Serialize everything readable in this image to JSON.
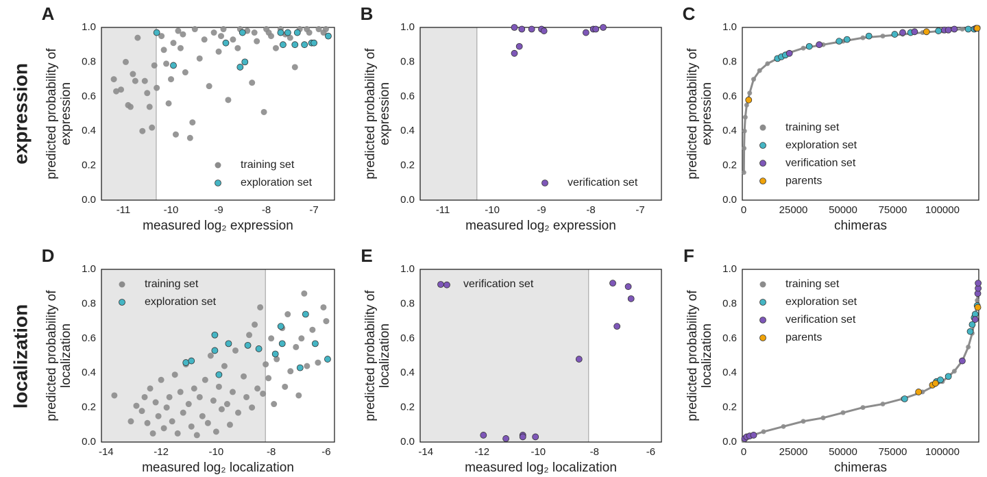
{
  "row_labels": [
    "expression",
    "localization"
  ],
  "chart_data": [
    {
      "type": "scatter",
      "panel_label": "A",
      "xlabel": "measured log₂ expression",
      "ylabel": [
        "predicted probability of",
        "expression"
      ],
      "xlim": [
        -11.46,
        -6.57
      ],
      "ylim": [
        0,
        1
      ],
      "xticks": [
        -11,
        -10,
        -9,
        -8,
        -7
      ],
      "yticks": [
        {
          "value": 0,
          "label": "0.0"
        },
        0.2,
        0.4,
        0.6,
        0.8,
        {
          "value": 1,
          "label": "1.0"
        }
      ],
      "threshold": -10.31,
      "legend": "lower right",
      "series": [
        {
          "name": "training set",
          "color": "#8c8c8c",
          "x": [
            -11.2,
            -11.15,
            -11.05,
            -10.95,
            -10.9,
            -10.85,
            -10.8,
            -10.75,
            -10.7,
            -10.6,
            -10.55,
            -10.5,
            -10.45,
            -10.4,
            -10.35,
            -10.3,
            -10.2,
            -10.15,
            -10.1,
            -10.05,
            -10.0,
            -9.9,
            -9.85,
            -9.8,
            -9.7,
            -9.6,
            -9.55,
            -9.5,
            -9.4,
            -9.3,
            -9.2,
            -9.1,
            -9.0,
            -8.9,
            -8.8,
            -8.7,
            -8.6,
            -8.4,
            -8.3,
            -8.2,
            -8.05,
            -8.0,
            -7.9,
            -7.8,
            -7.7,
            -7.5,
            -7.4,
            -7.3,
            -7.1,
            -6.9,
            -6.8,
            -6.75,
            -9.95,
            -9.75,
            -8.95,
            -8.55,
            -8.25,
            -7.95,
            -7.6,
            -7.15
          ],
          "values": [
            0.7,
            0.63,
            0.64,
            0.8,
            0.55,
            0.54,
            0.73,
            0.69,
            0.94,
            0.4,
            0.69,
            0.62,
            0.54,
            0.42,
            0.78,
            0.65,
            0.95,
            0.87,
            0.79,
            0.56,
            0.7,
            0.38,
            0.98,
            0.88,
            0.74,
            0.36,
            0.45,
            0.99,
            0.82,
            0.93,
            0.66,
            0.97,
            0.86,
            0.99,
            0.58,
            0.93,
            0.88,
            0.98,
            0.68,
            0.92,
            0.51,
            0.99,
            0.95,
            0.88,
            0.99,
            0.94,
            0.77,
            0.99,
            0.97,
            0.99,
            0.97,
            0.99,
            0.91,
            0.96,
            0.95,
            0.99,
            0.97,
            0.97,
            0.96,
            0.99
          ]
        },
        {
          "name": "exploration set",
          "color": "#45b5c4",
          "x": [
            -10.3,
            -9.95,
            -8.85,
            -8.5,
            -8.55,
            -8.45,
            -7.7,
            -7.55,
            -7.35,
            -7.65,
            -7.4,
            -7.2,
            -7.05,
            -7.0,
            -6.7
          ],
          "values": [
            0.97,
            0.78,
            0.91,
            0.97,
            0.77,
            0.8,
            0.97,
            0.97,
            0.97,
            0.9,
            0.9,
            0.9,
            0.91,
            0.91,
            0.95
          ]
        }
      ]
    },
    {
      "type": "scatter",
      "panel_label": "B",
      "xlabel": "measured log₂ expression",
      "ylabel": [
        "predicted probability of",
        "expression"
      ],
      "xlim": [
        -11.46,
        -6.57
      ],
      "ylim": [
        0,
        1
      ],
      "xticks": [
        -11,
        -10,
        -9,
        -8,
        -7
      ],
      "yticks": [
        {
          "value": 0,
          "label": "0.0"
        },
        0.2,
        0.4,
        0.6,
        0.8,
        {
          "value": 1,
          "label": "1.0"
        }
      ],
      "threshold": -10.31,
      "legend": "lower right",
      "series": [
        {
          "name": "verification set",
          "color": "#7e57b8",
          "x": [
            -9.55,
            -9.45,
            -9.55,
            -9.4,
            -9.2,
            -9.0,
            -8.95,
            -8.1,
            -7.95,
            -7.9,
            -7.75
          ],
          "values": [
            0.85,
            0.89,
            1.0,
            0.99,
            0.99,
            0.99,
            0.98,
            0.97,
            0.99,
            0.99,
            1.0
          ]
        }
      ]
    },
    {
      "type": "scatter",
      "panel_label": "C",
      "xlabel": "chimeras",
      "ylabel": [
        "predicted probability of",
        "expression"
      ],
      "xlim": [
        -700,
        118300
      ],
      "ylim": [
        0,
        1
      ],
      "xticks": [
        0,
        25000,
        50000,
        75000,
        100000
      ],
      "yticks": [
        {
          "value": 0,
          "label": "0.0"
        },
        0.2,
        0.4,
        0.6,
        0.8,
        {
          "value": 1,
          "label": "1.0"
        }
      ],
      "legend": "center left",
      "series": [
        {
          "name": "training set",
          "color": "#8c8c8c",
          "line": true,
          "x": [
            100,
            200,
            400,
            800,
            1500,
            3000,
            5000,
            8000,
            12000,
            17000,
            22000,
            30000,
            40000,
            50000,
            60000,
            70000,
            80000,
            90000,
            100000,
            110000,
            118000
          ],
          "values": [
            0.16,
            0.3,
            0.4,
            0.48,
            0.55,
            0.62,
            0.7,
            0.75,
            0.79,
            0.82,
            0.85,
            0.88,
            0.9,
            0.92,
            0.94,
            0.95,
            0.96,
            0.97,
            0.98,
            0.99,
            1.0
          ]
        },
        {
          "name": "exploration set",
          "color": "#45b5c4",
          "x": [
            17000,
            19000,
            21000,
            33000,
            48000,
            52000,
            63000,
            76000,
            84000,
            98000,
            113000,
            116000
          ],
          "values": [
            0.82,
            0.83,
            0.84,
            0.89,
            0.92,
            0.93,
            0.95,
            0.96,
            0.97,
            0.98,
            0.99,
            0.99
          ]
        },
        {
          "name": "verification set",
          "color": "#7e57b8",
          "x": [
            23000,
            38000,
            80000,
            86000,
            101000,
            103000,
            106000,
            117000
          ],
          "values": [
            0.85,
            0.9,
            0.97,
            0.975,
            0.985,
            0.985,
            0.99,
            0.995
          ]
        },
        {
          "name": "parents",
          "color": "#f0a30a",
          "x": [
            2500,
            92000,
            117500
          ],
          "values": [
            0.58,
            0.975,
            0.995
          ]
        }
      ]
    },
    {
      "type": "scatter",
      "panel_label": "D",
      "xlabel": "measured log₂ localization",
      "ylabel": [
        "predicted probability of",
        "localization"
      ],
      "xlim": [
        -14.17,
        -5.7
      ],
      "ylim": [
        0,
        1
      ],
      "xticks": [
        -14,
        -12,
        -10,
        -8,
        -6
      ],
      "yticks": [
        {
          "value": 0,
          "label": "0.0"
        },
        0.2,
        0.4,
        0.6,
        0.8,
        {
          "value": 1,
          "label": "1.0"
        }
      ],
      "threshold": -8.21,
      "legend": "upper left",
      "series": [
        {
          "name": "training set",
          "color": "#8c8c8c",
          "x": [
            -13.7,
            -13.1,
            -12.9,
            -12.7,
            -12.6,
            -12.5,
            -12.4,
            -12.3,
            -12.2,
            -12.1,
            -12.0,
            -11.9,
            -11.8,
            -11.7,
            -11.6,
            -11.5,
            -11.4,
            -11.3,
            -11.2,
            -11.1,
            -11.0,
            -10.9,
            -10.8,
            -10.7,
            -10.6,
            -10.5,
            -10.4,
            -10.3,
            -10.2,
            -10.1,
            -10.0,
            -9.9,
            -9.8,
            -9.7,
            -9.6,
            -9.5,
            -9.4,
            -9.3,
            -9.2,
            -9.0,
            -8.9,
            -8.8,
            -8.7,
            -8.6,
            -8.5,
            -8.4,
            -8.3,
            -8.2,
            -8.1,
            -8.0,
            -7.9,
            -7.8,
            -7.6,
            -7.5,
            -7.4,
            -7.3,
            -7.1,
            -7.0,
            -6.9,
            -6.8,
            -6.7,
            -6.5,
            -6.3,
            -6.1,
            -6.0
          ],
          "values": [
            0.27,
            0.12,
            0.21,
            0.18,
            0.26,
            0.11,
            0.31,
            0.05,
            0.23,
            0.15,
            0.36,
            0.08,
            0.2,
            0.26,
            0.12,
            0.39,
            0.05,
            0.29,
            0.17,
            0.45,
            0.22,
            0.09,
            0.31,
            0.04,
            0.26,
            0.15,
            0.36,
            0.11,
            0.5,
            0.24,
            0.06,
            0.32,
            0.19,
            0.44,
            0.22,
            0.1,
            0.29,
            0.53,
            0.17,
            0.38,
            0.26,
            0.62,
            0.2,
            0.68,
            0.31,
            0.78,
            0.28,
            0.45,
            0.37,
            0.6,
            0.22,
            0.48,
            0.66,
            0.32,
            0.74,
            0.41,
            0.55,
            0.27,
            0.6,
            0.86,
            0.44,
            0.65,
            0.46,
            0.78,
            0.7
          ]
        },
        {
          "name": "exploration set",
          "color": "#45b5c4",
          "x": [
            -11.1,
            -10.9,
            -10.05,
            -10.05,
            -9.9,
            -9.55,
            -8.85,
            -8.45,
            -7.85,
            -7.65,
            -7.6,
            -6.95,
            -6.75,
            -6.4,
            -5.95
          ],
          "values": [
            0.46,
            0.47,
            0.62,
            0.53,
            0.39,
            0.57,
            0.56,
            0.54,
            0.51,
            0.67,
            0.57,
            0.43,
            0.74,
            0.57,
            0.48
          ]
        }
      ]
    },
    {
      "type": "scatter",
      "panel_label": "E",
      "xlabel": "measured log₂ localization",
      "ylabel": [
        "predicted probability of",
        "localization"
      ],
      "xlim": [
        -14.2,
        -5.62
      ],
      "ylim": [
        0,
        1
      ],
      "xticks": [
        -14,
        -12,
        -10,
        -8,
        -6
      ],
      "yticks": [
        {
          "value": 0,
          "label": "0.0"
        },
        0.2,
        0.4,
        0.6,
        0.8,
        {
          "value": 1,
          "label": "1.0"
        }
      ],
      "threshold": -8.21,
      "legend": "upper left",
      "series": [
        {
          "name": "verification set",
          "color": "#7e57b8",
          "x": [
            -13.25,
            -11.95,
            -11.15,
            -10.55,
            -10.55,
            -10.1,
            -8.55,
            -7.35,
            -7.2,
            -6.8,
            -6.7
          ],
          "values": [
            0.91,
            0.04,
            0.02,
            0.04,
            0.03,
            0.03,
            0.48,
            0.92,
            0.67,
            0.9,
            0.83
          ]
        }
      ]
    },
    {
      "type": "scatter",
      "panel_label": "F",
      "xlabel": "chimeras",
      "ylabel": [
        "predicted probability of",
        "localization"
      ],
      "xlim": [
        -700,
        118300
      ],
      "ylim": [
        0,
        1
      ],
      "xticks": [
        0,
        25000,
        50000,
        75000,
        100000
      ],
      "yticks": [
        {
          "value": 0,
          "label": "0.0"
        },
        0.2,
        0.4,
        0.6,
        0.8,
        {
          "value": 1,
          "label": "1.0"
        }
      ],
      "legend": "upper left",
      "series": [
        {
          "name": "training set",
          "color": "#8c8c8c",
          "line": true,
          "x": [
            0,
            2000,
            10000,
            20000,
            30000,
            40000,
            50000,
            60000,
            70000,
            80000,
            90000,
            100000,
            106000,
            110000,
            113000,
            115000,
            116500,
            117500,
            118000
          ],
          "values": [
            0.01,
            0.03,
            0.06,
            0.09,
            0.12,
            0.14,
            0.17,
            0.2,
            0.22,
            0.25,
            0.29,
            0.35,
            0.41,
            0.47,
            0.55,
            0.63,
            0.72,
            0.82,
            0.92
          ]
        },
        {
          "name": "exploration set",
          "color": "#45b5c4",
          "x": [
            81000,
            97000,
            99000,
            103000,
            114000,
            115000,
            116000,
            116500,
            117500
          ],
          "values": [
            0.25,
            0.35,
            0.36,
            0.38,
            0.64,
            0.68,
            0.72,
            0.74,
            0.79
          ]
        },
        {
          "name": "verification set",
          "color": "#7e57b8",
          "x": [
            500,
            1500,
            3000,
            5000,
            110000,
            116500,
            117800,
            118000,
            118000
          ],
          "values": [
            0.02,
            0.03,
            0.035,
            0.04,
            0.47,
            0.71,
            0.86,
            0.89,
            0.92
          ]
        },
        {
          "name": "parents",
          "color": "#f0a30a",
          "x": [
            88000,
            95000,
            96500,
            117800
          ],
          "values": [
            0.29,
            0.33,
            0.34,
            0.78
          ]
        }
      ]
    }
  ]
}
